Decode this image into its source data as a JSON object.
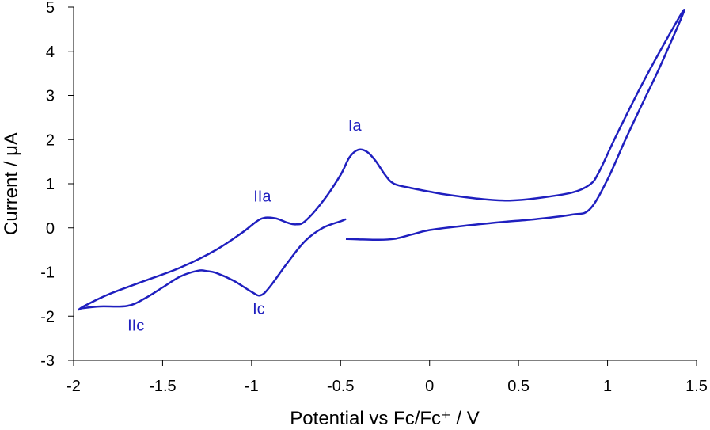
{
  "chart_data": {
    "type": "line",
    "title": "",
    "xlabel": "Potential vs Fc/Fc⁺ / V",
    "ylabel": "Current / μA",
    "xlim": [
      -2,
      1.5
    ],
    "ylim": [
      -3,
      5
    ],
    "x_ticks": [
      "-2",
      "-1.5",
      "-1",
      "-0.5",
      "0",
      "0.5",
      "1",
      "1.5"
    ],
    "y_ticks": [
      "5",
      "4",
      "3",
      "2",
      "1",
      "0",
      "-1",
      "-2",
      "-3"
    ],
    "grid": false,
    "legend": "none",
    "line_color": "#1f1fbf",
    "series": [
      {
        "x": [
          -0.47,
          -0.4,
          -0.3,
          -0.2,
          -0.1,
          0.0,
          0.2,
          0.4,
          0.6,
          0.8,
          0.9,
          1.0,
          1.1,
          1.2,
          1.3,
          1.43,
          1.35,
          1.2,
          1.05,
          0.95,
          0.9,
          0.8,
          0.6,
          0.45,
          0.3,
          0.1,
          0.0,
          -0.1,
          -0.2,
          -0.25,
          -0.3,
          -0.35,
          -0.4,
          -0.45,
          -0.5,
          -0.6,
          -0.7,
          -0.75,
          -0.8,
          -0.87,
          -0.95,
          -1.05,
          -1.2,
          -1.4,
          -1.6,
          -1.8,
          -1.93,
          -1.97,
          -1.95,
          -1.85,
          -1.7,
          -1.6,
          -1.5,
          -1.4,
          -1.3,
          -1.25,
          -1.2,
          -1.1,
          -1.0,
          -0.95,
          -0.9,
          -0.8,
          -0.7,
          -0.6,
          -0.5,
          -0.47
        ],
        "y": [
          -0.25,
          -0.26,
          -0.27,
          -0.25,
          -0.15,
          -0.05,
          0.05,
          0.13,
          0.2,
          0.3,
          0.42,
          1.1,
          2.0,
          2.85,
          3.7,
          4.92,
          4.4,
          3.3,
          2.1,
          1.25,
          0.98,
          0.8,
          0.67,
          0.62,
          0.65,
          0.75,
          0.82,
          0.9,
          1.0,
          1.2,
          1.5,
          1.72,
          1.77,
          1.6,
          1.2,
          0.6,
          0.15,
          0.08,
          0.12,
          0.22,
          0.2,
          -0.1,
          -0.5,
          -0.9,
          -1.2,
          -1.5,
          -1.75,
          -1.85,
          -1.82,
          -1.78,
          -1.77,
          -1.6,
          -1.35,
          -1.1,
          -0.97,
          -0.98,
          -1.02,
          -1.2,
          -1.45,
          -1.53,
          -1.35,
          -0.8,
          -0.3,
          0.0,
          0.15,
          0.2
        ]
      }
    ],
    "annotations": [
      {
        "text": "Ia",
        "x": -0.42,
        "y": 2.2
      },
      {
        "text": "IIa",
        "x": -0.94,
        "y": 0.6
      },
      {
        "text": "Ic",
        "x": -0.96,
        "y": -1.95
      },
      {
        "text": "IIc",
        "x": -1.65,
        "y": -2.33
      }
    ]
  }
}
